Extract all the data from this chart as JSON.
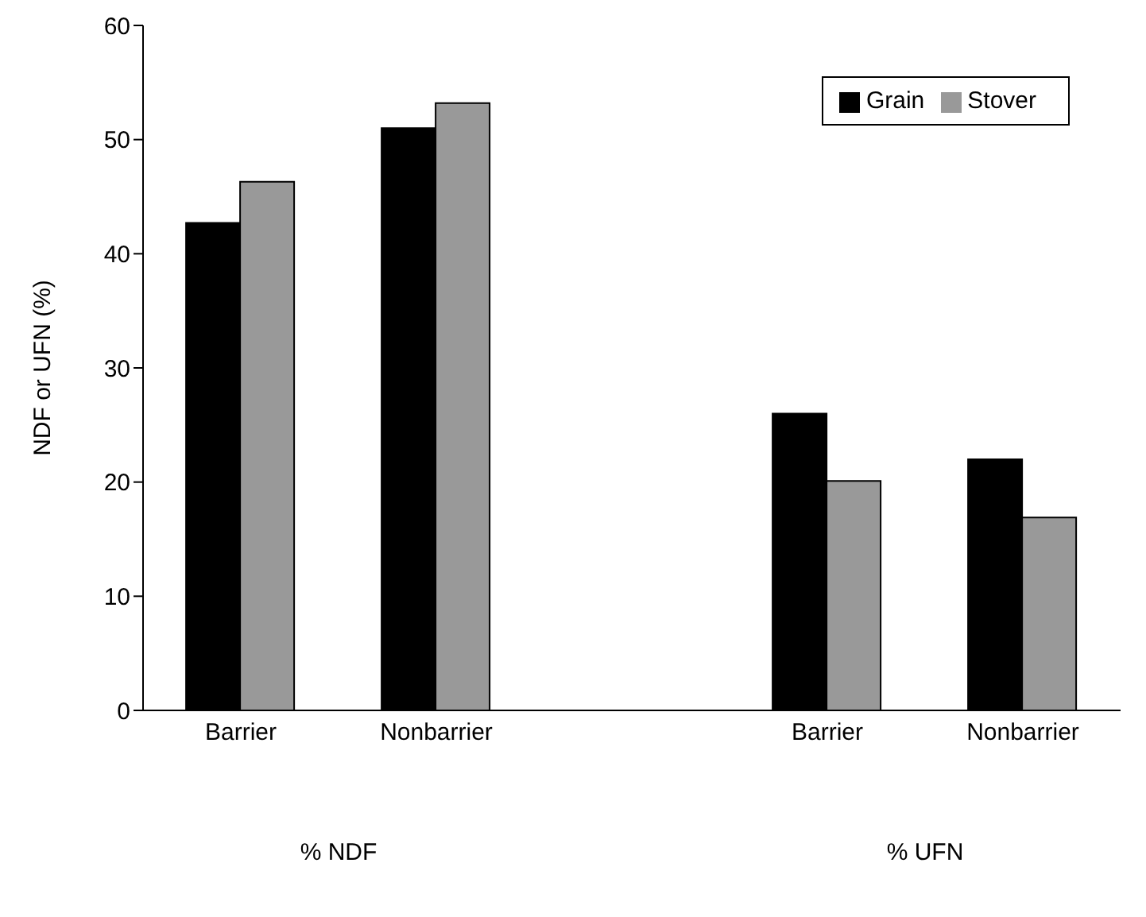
{
  "chart_data": {
    "type": "bar",
    "ylabel": "NDF or UFN (%)",
    "categories": [
      "Barrier",
      "Nonbarrier",
      null,
      "Barrier",
      "Nonbarrier"
    ],
    "series": [
      {
        "name": "Grain",
        "color": "#000000",
        "values": [
          42.7,
          51,
          null,
          26,
          22
        ]
      },
      {
        "name": "Stover",
        "color": "#999999",
        "values": [
          46.3,
          53.2,
          null,
          20.1,
          16.9
        ]
      }
    ],
    "ylim": [
      0,
      60
    ],
    "yticks": [
      0,
      10,
      20,
      30,
      40,
      50,
      60
    ],
    "legend": "top right",
    "annotations": [
      "% NDF",
      "% UFN"
    ]
  }
}
